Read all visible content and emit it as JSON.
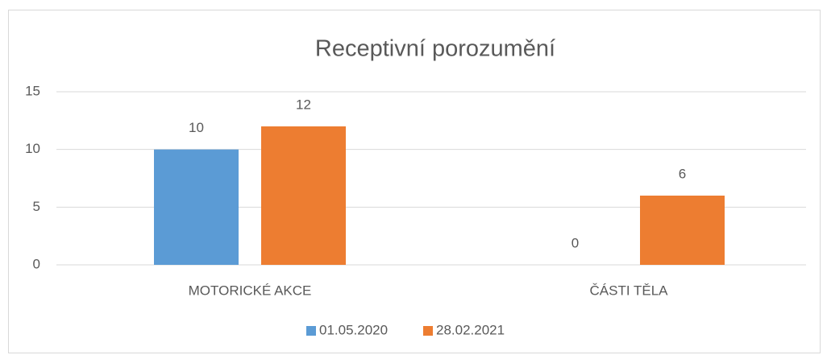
{
  "chart_data": {
    "type": "bar",
    "title": "Receptivní porozumění",
    "categories": [
      "MOTORICKÉ AKCE",
      "ČÁSTI TĚLA"
    ],
    "series": [
      {
        "name": "01.05.2020",
        "color": "#5b9bd5",
        "values": [
          10,
          0
        ]
      },
      {
        "name": "28.02.2021",
        "color": "#ed7d31",
        "values": [
          12,
          6
        ]
      }
    ],
    "ylim": [
      0,
      15
    ],
    "yticks": [
      0,
      5,
      10,
      15
    ],
    "grid": true,
    "legend": "bottom"
  }
}
